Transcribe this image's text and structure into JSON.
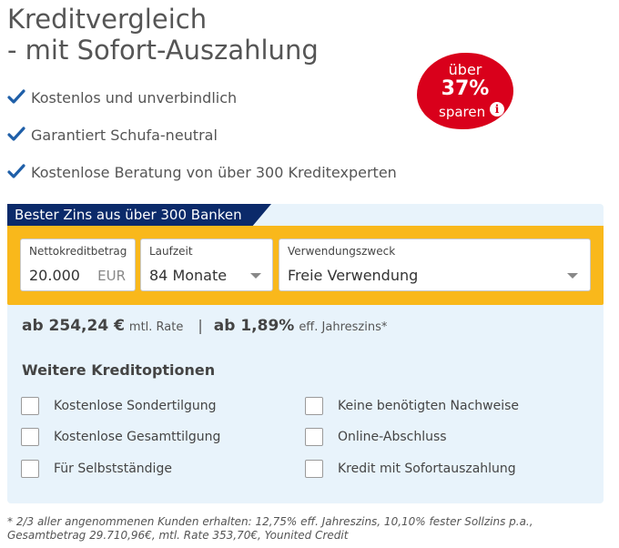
{
  "header": {
    "title_line1": "Kreditvergleich",
    "title_line2": "- mit Sofort-Auszahlung"
  },
  "features": [
    "Kostenlos und unverbindlich",
    "Garantiert Schufa-neutral",
    "Kostenlose Beratung von über 300 Kreditexperten"
  ],
  "badge": {
    "line1": "über",
    "line2": "37%",
    "line3": "sparen",
    "info": "i"
  },
  "form": {
    "ribbon": "Bester Zins aus über 300 Banken",
    "amount": {
      "label": "Nettokreditbetrag",
      "value": "20.000",
      "unit": "EUR"
    },
    "term": {
      "label": "Laufzeit",
      "value": "84 Monate"
    },
    "purpose": {
      "label": "Verwendungszweck",
      "value": "Freie Verwendung"
    }
  },
  "rate": {
    "monthly": "ab 254,24 €",
    "monthly_label": "mtl. Rate",
    "separator": "|",
    "apr": "ab 1,89%",
    "apr_label": "eff. Jahreszins*"
  },
  "options": {
    "title": "Weitere Kreditoptionen",
    "left": [
      "Kostenlose Sondertilgung",
      "Kostenlose Gesamttilgung",
      "Für Selbstständige"
    ],
    "right": [
      "Keine benötigten Nachweise",
      "Online-Abschluss",
      "Kredit mit Sofortauszahlung"
    ]
  },
  "footnote": {
    "line1": "* 2/3 aller angenommenen Kunden erhalten: 12,75% eff. Jahreszins, 10,10% fester Sollzins p.a.,",
    "line2": "Gesamtbetrag 29.710,96€, mtl. Rate 353,70€, Younited Credit"
  },
  "colors": {
    "accent_yellow": "#f9b81b",
    "navy": "#0b2a6a",
    "badge_red": "#d9001b",
    "panel_bg": "#e8f3fb",
    "check_blue": "#1f5fa8"
  }
}
